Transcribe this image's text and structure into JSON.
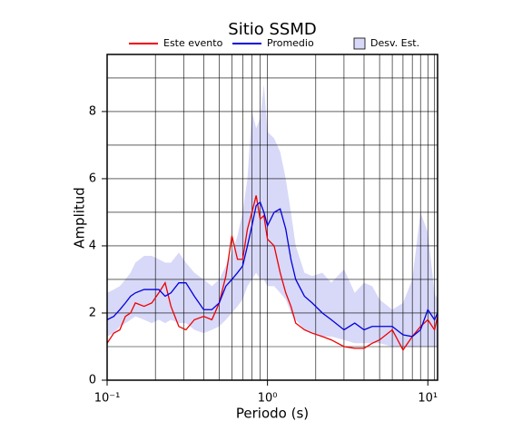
{
  "chart_data": {
    "type": "line",
    "title": "Sitio SSMD",
    "x_label": "Periodo (s)",
    "y_label": "Amplitud",
    "log_x": true,
    "grid": true,
    "legend": "top",
    "xlim": [
      0.1,
      11.5
    ],
    "ylim": [
      0,
      9.7
    ],
    "xticks": [
      {
        "value": 0.1,
        "label": "10⁻¹"
      },
      {
        "value": 1,
        "label": "10⁰"
      },
      {
        "value": 10,
        "label": "10¹"
      }
    ],
    "xgrid": [
      0.2,
      0.3,
      0.4,
      0.5,
      0.6,
      0.7,
      0.8,
      0.9,
      2,
      3,
      4,
      5,
      6,
      7,
      8,
      9,
      11
    ],
    "yticks": [
      0,
      2,
      4,
      6,
      8
    ],
    "ygrid": [
      1,
      3,
      5,
      7,
      9
    ],
    "x": [
      0.1,
      0.11,
      0.12,
      0.13,
      0.14,
      0.15,
      0.17,
      0.19,
      0.21,
      0.23,
      0.25,
      0.28,
      0.31,
      0.35,
      0.4,
      0.45,
      0.5,
      0.55,
      0.6,
      0.65,
      0.7,
      0.75,
      0.8,
      0.85,
      0.9,
      0.95,
      1.0,
      1.1,
      1.2,
      1.3,
      1.4,
      1.5,
      1.7,
      1.9,
      2.2,
      2.5,
      3,
      3.5,
      4,
      4.5,
      5,
      6,
      7,
      8,
      9,
      10,
      11,
      11.5
    ],
    "series": [
      {
        "name": "Este evento",
        "color": "#ee0000",
        "values": [
          1.1,
          1.4,
          1.5,
          1.9,
          2.0,
          2.3,
          2.2,
          2.3,
          2.6,
          2.9,
          2.2,
          1.6,
          1.5,
          1.8,
          1.9,
          1.8,
          2.3,
          3.1,
          4.3,
          3.6,
          3.6,
          4.5,
          5.0,
          5.5,
          4.8,
          4.9,
          4.2,
          4.0,
          3.2,
          2.6,
          2.2,
          1.7,
          1.5,
          1.4,
          1.3,
          1.2,
          1.0,
          0.95,
          0.95,
          1.1,
          1.2,
          1.5,
          0.9,
          1.3,
          1.6,
          1.8,
          1.5,
          1.9
        ]
      },
      {
        "name": "Promedio",
        "color": "#0000dd",
        "values": [
          1.8,
          1.9,
          2.1,
          2.3,
          2.5,
          2.6,
          2.7,
          2.7,
          2.7,
          2.5,
          2.6,
          2.9,
          2.9,
          2.5,
          2.1,
          2.1,
          2.3,
          2.8,
          3.0,
          3.2,
          3.4,
          4.0,
          4.6,
          5.2,
          5.3,
          5.0,
          4.6,
          5.0,
          5.1,
          4.5,
          3.6,
          3.0,
          2.5,
          2.3,
          2.0,
          1.8,
          1.5,
          1.7,
          1.5,
          1.6,
          1.6,
          1.6,
          1.35,
          1.3,
          1.5,
          2.1,
          1.8,
          2.0
        ]
      },
      {
        "name": "Desv. Est.",
        "color": "#d8d8f8",
        "lower": [
          1.3,
          1.4,
          1.6,
          1.7,
          1.8,
          1.9,
          1.8,
          1.7,
          1.8,
          1.7,
          1.8,
          1.7,
          1.7,
          1.5,
          1.4,
          1.5,
          1.6,
          1.8,
          2.0,
          2.2,
          2.4,
          2.8,
          3.0,
          3.2,
          3.0,
          3.0,
          2.8,
          2.8,
          2.6,
          2.4,
          2.0,
          1.8,
          1.5,
          1.4,
          1.3,
          1.3,
          1.2,
          1.1,
          1.1,
          1.1,
          1.1,
          1.0,
          1.0,
          1.0,
          1.0,
          1.0,
          1.0,
          1.0
        ],
        "upper": [
          2.6,
          2.7,
          2.8,
          3.0,
          3.2,
          3.5,
          3.7,
          3.7,
          3.6,
          3.5,
          3.5,
          3.8,
          3.5,
          3.2,
          3.0,
          2.8,
          3.0,
          3.4,
          3.8,
          4.3,
          5.0,
          6.0,
          8.0,
          7.5,
          7.8,
          8.8,
          7.4,
          7.2,
          6.8,
          6.0,
          5.0,
          4.0,
          3.2,
          3.1,
          3.2,
          2.9,
          3.3,
          2.6,
          2.9,
          2.8,
          2.4,
          2.1,
          2.3,
          3.0,
          5.0,
          4.4,
          2.6,
          2.4
        ]
      }
    ]
  }
}
